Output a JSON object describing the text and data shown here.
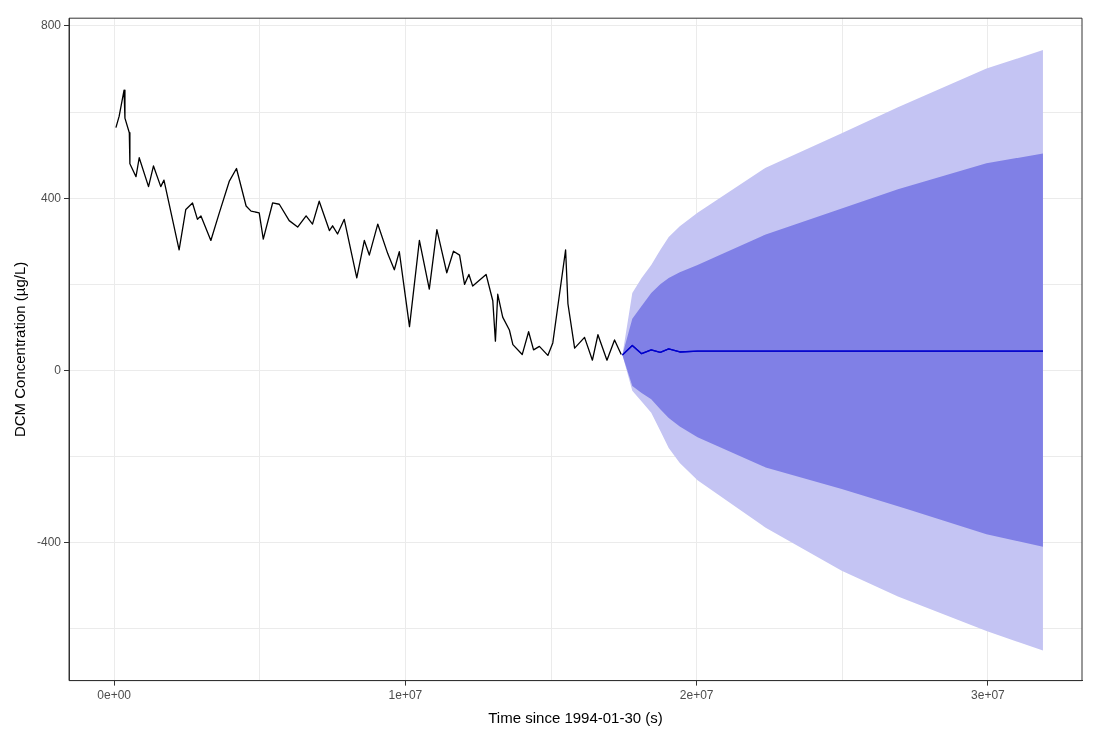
{
  "chart_data": {
    "type": "line",
    "xlabel": "Time since 1994-01-30 (s)",
    "ylabel": "DCM Concentration (µg/L)",
    "xlim": [
      -1550000,
      33230000
    ],
    "ylim": [
      -720,
      818
    ],
    "xticks": [
      {
        "value": 0,
        "label": "0e+00"
      },
      {
        "value": 5000000,
        "label": null
      },
      {
        "value": 10000000,
        "label": "1e+07"
      },
      {
        "value": 15000000,
        "label": null
      },
      {
        "value": 20000000,
        "label": "2e+07"
      },
      {
        "value": 25000000,
        "label": null
      },
      {
        "value": 30000000,
        "label": "3e+07"
      }
    ],
    "yticks": [
      {
        "value": -600,
        "label": null
      },
      -400,
      {
        "value": -200,
        "label": null
      },
      0,
      {
        "value": 200,
        "label": null
      },
      400,
      {
        "value": 600,
        "label": null
      },
      800
    ],
    "grid": true,
    "legend": false,
    "marker": "none",
    "series": [
      {
        "color": "#000000",
        "x": [
          60000,
          170000,
          340000,
          370000,
          520000,
          540000,
          750000,
          860000,
          1180000,
          1350000,
          1600000,
          1710000,
          2230000,
          2460000,
          2690000,
          2860000,
          2980000,
          3320000,
          3610000,
          3950000,
          4200000,
          4530000,
          4700000,
          4980000,
          5120000,
          5440000,
          5670000,
          6010000,
          6300000,
          6590000,
          6810000,
          7040000,
          7390000,
          7500000,
          7670000,
          7900000,
          8330000,
          8590000,
          8760000,
          9050000,
          9390000,
          9620000,
          9790000,
          10140000,
          10480000,
          10820000,
          11080000,
          11420000,
          11650000,
          11860000,
          12030000,
          12180000,
          12310000,
          12770000,
          13000000,
          13090000,
          13170000,
          13340000,
          13570000,
          13690000,
          14010000,
          14230000,
          14400000,
          14600000,
          14890000,
          15060000,
          15290000,
          15500000,
          15580000,
          15810000,
          16150000,
          16420000,
          16610000,
          16920000,
          17180000,
          17410000
        ],
        "values": [
          564,
          590,
          651,
          586,
          552,
          480,
          450,
          494,
          427,
          475,
          427,
          442,
          280,
          374,
          389,
          351,
          359,
          302,
          366,
          439,
          469,
          382,
          370,
          366,
          305,
          389,
          386,
          348,
          333,
          359,
          340,
          393,
          325,
          336,
          317,
          351,
          215,
          302,
          268,
          340,
          272,
          234,
          276,
          102,
          302,
          189,
          327,
          227,
          277,
          268,
          200,
          223,
          196,
          223,
          162,
          68,
          177,
          124,
          94,
          60,
          37,
          90,
          48,
          56,
          35,
          64,
          177,
          280,
          155,
          52,
          77,
          24,
          83,
          24,
          71,
          37
        ]
      },
      {
        "color": "#0000cc",
        "x": [
          17450000,
          17790000,
          18110000,
          18440000,
          18750000,
          19040000,
          19420000,
          20030000,
          22370000,
          24980000,
          26910000,
          29950000,
          31890000
        ],
        "values": [
          36,
          58,
          39,
          48,
          42,
          50,
          43,
          45,
          45,
          45,
          45,
          45,
          45
        ],
        "lower": [
          36,
          -36,
          -52,
          -67,
          -90,
          -110,
          -130,
          -155,
          -225,
          -275,
          -315,
          -380,
          -409
        ],
        "upper": [
          36,
          120,
          150,
          180,
          200,
          215,
          228,
          245,
          316,
          376,
          421,
          481,
          504
        ]
      },
      {
        "color": "#0000cc",
        "x": [
          17450000,
          17790000,
          18110000,
          18440000,
          18750000,
          19040000,
          19420000,
          20030000,
          22370000,
          24980000,
          26910000,
          29950000,
          31890000
        ],
        "values": [
          36,
          58,
          39,
          48,
          42,
          50,
          43,
          45,
          45,
          45,
          45,
          45,
          45
        ],
        "lower": [
          36,
          -47,
          -72,
          -98,
          -140,
          -180,
          -215,
          -255,
          -365,
          -465,
          -525,
          -605,
          -650
        ],
        "upper": [
          36,
          180,
          215,
          245,
          280,
          310,
          335,
          366,
          471,
          551,
          611,
          701,
          744
        ]
      }
    ]
  }
}
